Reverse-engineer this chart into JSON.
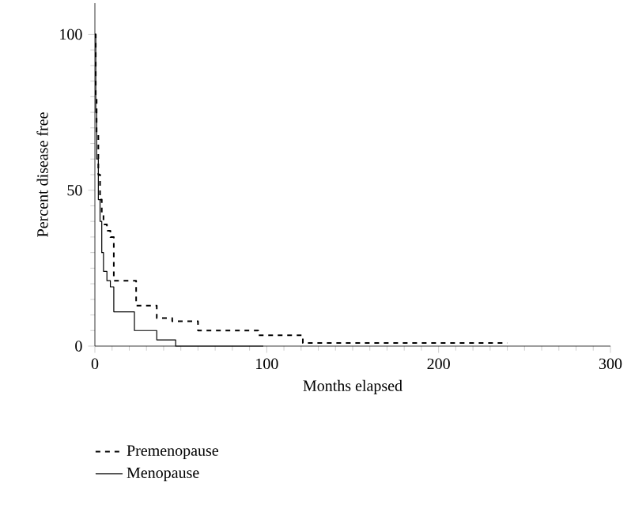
{
  "chart_data": {
    "type": "step",
    "xlabel": "Months elapsed",
    "ylabel": "Percent disease free",
    "xlim": [
      0,
      300
    ],
    "ylim": [
      0,
      110
    ],
    "xticks": [
      0,
      100,
      200,
      300
    ],
    "yticks": [
      0,
      50,
      100
    ],
    "grid": false,
    "legend": "bottom",
    "series": [
      {
        "name": "Premenopause",
        "color": "#000000",
        "line_style": "dashed",
        "x": [
          0,
          0.5,
          1,
          2,
          3,
          4,
          5,
          7,
          9,
          11,
          24,
          36,
          45,
          60,
          95,
          121,
          240
        ],
        "values": [
          100,
          80,
          68,
          55,
          47,
          42,
          39,
          37,
          35,
          21,
          13,
          9,
          8,
          5,
          3.5,
          1,
          1
        ]
      },
      {
        "name": "Menopause",
        "color": "#000000",
        "line_style": "solid",
        "x": [
          0,
          0.5,
          1,
          2,
          3,
          4,
          5,
          7,
          9,
          11,
          23,
          36,
          47,
          98
        ],
        "values": [
          100,
          75,
          60,
          47,
          40,
          30,
          24,
          21,
          19,
          11,
          5,
          2,
          0,
          0
        ]
      }
    ]
  }
}
